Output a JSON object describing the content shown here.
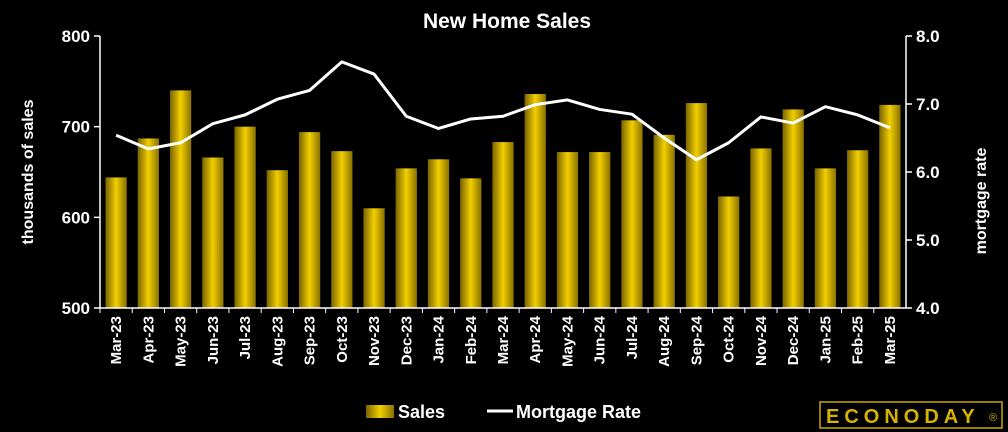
{
  "chart_data": {
    "type": "bar",
    "title": "New Home Sales",
    "categories": [
      "Mar-23",
      "Apr-23",
      "May-23",
      "Jun-23",
      "Jul-23",
      "Aug-23",
      "Sep-23",
      "Oct-23",
      "Nov-23",
      "Dec-23",
      "Jan-24",
      "Feb-24",
      "Mar-24",
      "Apr-24",
      "May-24",
      "Jun-24",
      "Jul-24",
      "Aug-24",
      "Sep-24",
      "Oct-24",
      "Nov-24",
      "Dec-24",
      "Jan-25",
      "Feb-25",
      "Mar-25"
    ],
    "series": [
      {
        "name": "Sales",
        "type": "bar",
        "axis": "left",
        "color": "#d4b000",
        "values": [
          644,
          687,
          740,
          666,
          700,
          652,
          694,
          673,
          610,
          654,
          664,
          643,
          683,
          736,
          672,
          672,
          707,
          691,
          726,
          623,
          676,
          719,
          654,
          674,
          724
        ]
      },
      {
        "name": "Mortgage Rate",
        "type": "line",
        "axis": "right",
        "color": "#ffffff",
        "values": [
          6.54,
          6.34,
          6.43,
          6.71,
          6.84,
          7.07,
          7.2,
          7.62,
          7.44,
          6.82,
          6.64,
          6.78,
          6.82,
          6.99,
          7.06,
          6.92,
          6.85,
          6.5,
          6.18,
          6.43,
          6.81,
          6.72,
          6.96,
          6.84,
          6.65
        ]
      }
    ],
    "ylabel": "thousands of sales",
    "ylim": [
      500,
      800
    ],
    "yticks": [
      "500",
      "600",
      "700",
      "800"
    ],
    "y2label": "mortgage rate",
    "y2lim": [
      4.0,
      8.0
    ],
    "y2ticks": [
      "4.0",
      "5.0",
      "6.0",
      "7.0",
      "8.0"
    ],
    "legend_placement": "bottom-center",
    "grid": false
  },
  "logo": {
    "text": "ECONODAY",
    "mark": "®"
  }
}
